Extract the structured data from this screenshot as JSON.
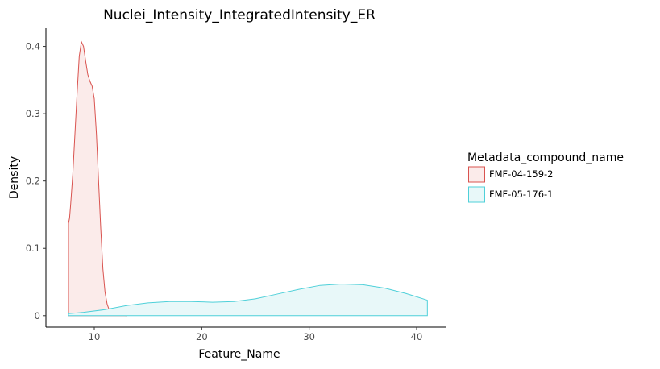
{
  "chart_data": {
    "type": "area",
    "title": "Nuclei_Intensity_IntegratedIntensity_ER",
    "xlabel": "Feature_Name",
    "ylabel": "Density",
    "xlim": [
      5.5,
      42.7
    ],
    "ylim": [
      -0.017,
      0.427
    ],
    "xticks": [
      10,
      20,
      30,
      40
    ],
    "yticks": [
      0,
      0.1,
      0.2,
      0.3,
      0.4
    ],
    "xtick_labels": [
      "10",
      "20",
      "30",
      "40"
    ],
    "ytick_labels": [
      "0",
      "0.1",
      "0.2",
      "0.3",
      "0.4"
    ],
    "grid": false,
    "legend_position": "right",
    "legend_title": "Metadata_compound_name",
    "series": [
      {
        "name": "FMF-04-159-2",
        "color": "#d9534f",
        "fill": "#fbebea",
        "x": [
          7.6,
          7.7,
          7.8,
          8.0,
          8.2,
          8.4,
          8.6,
          8.8,
          9.0,
          9.2,
          9.4,
          9.6,
          9.8,
          10.0,
          10.2,
          10.4,
          10.6,
          10.8,
          11.0,
          11.2,
          11.4,
          11.6,
          11.8,
          12.0,
          12.3,
          12.6,
          13.0
        ],
        "values": [
          0.137,
          0.145,
          0.165,
          0.21,
          0.27,
          0.33,
          0.385,
          0.407,
          0.4,
          0.378,
          0.358,
          0.348,
          0.341,
          0.322,
          0.27,
          0.2,
          0.13,
          0.07,
          0.035,
          0.017,
          0.008,
          0.004,
          0.002,
          0.001,
          0.0005,
          0.0002,
          0.0
        ]
      },
      {
        "name": "FMF-05-176-1",
        "color": "#4fd0d9",
        "fill": "#e8f8f9",
        "x": [
          7.6,
          9,
          11,
          13,
          15,
          17,
          19,
          21,
          23,
          25,
          27,
          29,
          31,
          33,
          35,
          37,
          39,
          41
        ],
        "values": [
          0.003,
          0.005,
          0.009,
          0.015,
          0.019,
          0.021,
          0.021,
          0.02,
          0.021,
          0.025,
          0.032,
          0.039,
          0.045,
          0.047,
          0.046,
          0.041,
          0.033,
          0.023
        ]
      }
    ]
  }
}
